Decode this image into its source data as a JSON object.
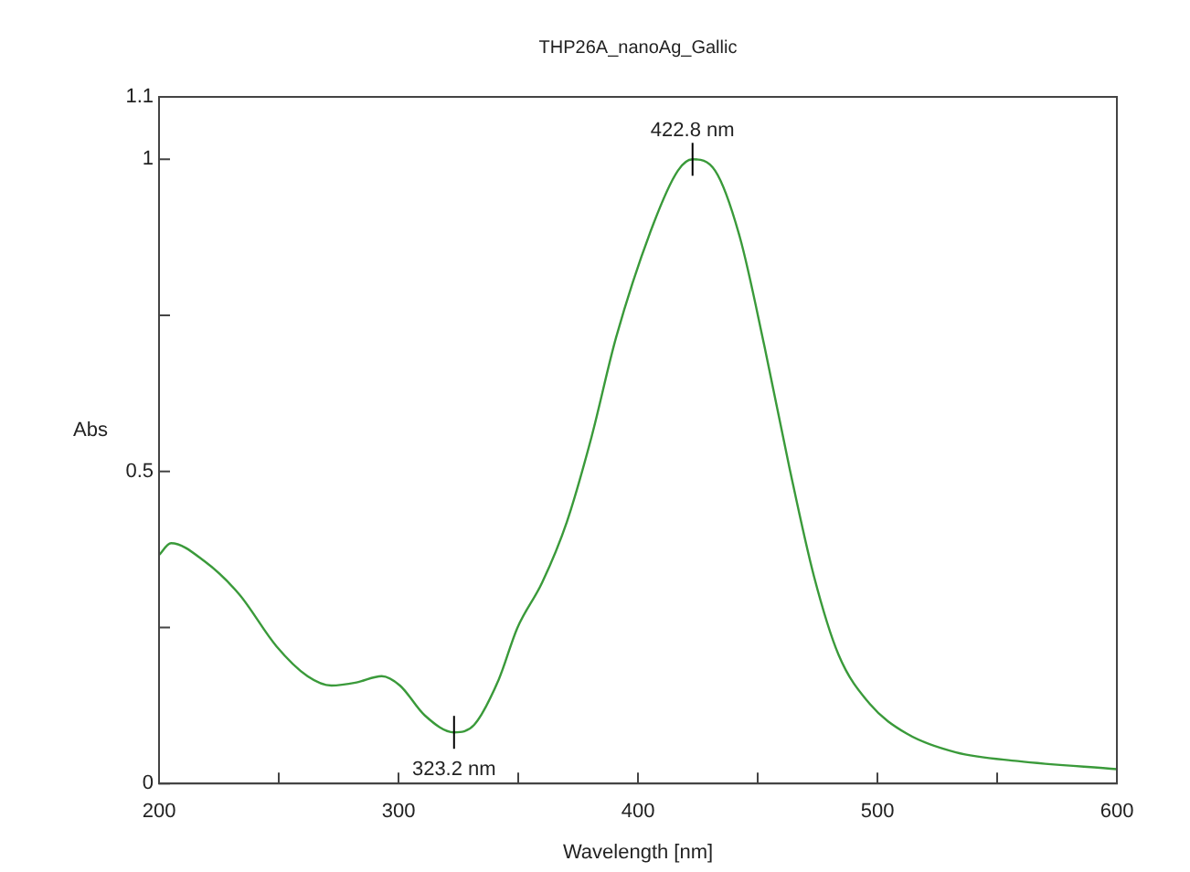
{
  "chart_data": {
    "type": "line",
    "title": "THP26A_nanoAg_Gallic",
    "xlabel": "Wavelength [nm]",
    "ylabel": "Abs",
    "x": [
      200,
      205,
      219,
      233.5,
      249,
      262,
      272,
      282.5,
      293,
      300.6,
      311,
      323.2,
      331.6,
      341.9,
      349.6,
      360,
      370.3,
      380.6,
      390.9,
      406.3,
      416.7,
      422.8,
      432.2,
      442.5,
      452.8,
      463.2,
      473.5,
      483.8,
      496.7,
      512.2,
      532.8,
      558.6,
      600
    ],
    "series": [
      {
        "color": "#3a9a3a",
        "values": [
          0.366,
          0.385,
          0.356,
          0.303,
          0.22,
          0.172,
          0.157,
          0.162,
          0.172,
          0.157,
          0.109,
          0.082,
          0.094,
          0.167,
          0.249,
          0.322,
          0.419,
          0.555,
          0.715,
          0.895,
          0.982,
          1.0,
          0.982,
          0.876,
          0.701,
          0.507,
          0.332,
          0.206,
          0.128,
          0.08,
          0.05,
          0.036,
          0.023
        ]
      }
    ],
    "xlim": [
      200,
      600
    ],
    "xticks": [
      200,
      {
        "value": 250,
        "label": null
      },
      300,
      {
        "value": 350,
        "label": null
      },
      400,
      {
        "value": 450,
        "label": null
      },
      500,
      {
        "value": 550,
        "label": null
      },
      600
    ],
    "ylim": [
      0,
      1.1
    ],
    "yticks": [
      0,
      {
        "value": 0.25,
        "label": null
      },
      0.5,
      {
        "value": 0.75,
        "label": null
      },
      1,
      1.1
    ],
    "annotations": [
      {
        "text": "422.8 nm",
        "x": 422.8,
        "y": 1.0
      },
      {
        "text": "323.2 nm",
        "x": 323.2,
        "y": 0.082
      }
    ],
    "grid": false,
    "legend": false,
    "marker": "none",
    "line_style": "solid"
  }
}
